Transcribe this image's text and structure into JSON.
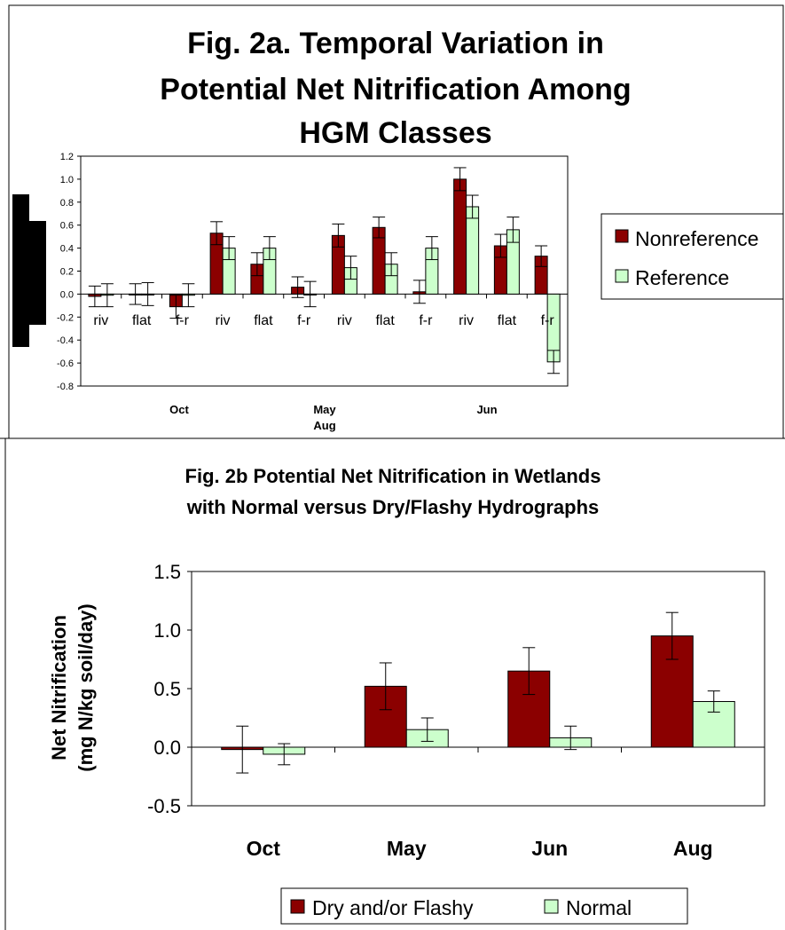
{
  "colors": {
    "dark": "#8B0000",
    "light": "#CCFFCC",
    "frame": "#000000"
  },
  "chart_data": [
    {
      "type": "bar",
      "title": "Fig. 2a. Temporal Variation in Potential Net Nitrification Among HGM Classes",
      "title_lines": [
        "Fig. 2a. Temporal Variation in",
        "Potential Net Nitrification Among",
        "HGM Classes"
      ],
      "categories": [
        "riv",
        "flat",
        "f-r",
        "riv",
        "flat",
        "f-r",
        "riv",
        "flat",
        "f-r",
        "riv",
        "flat",
        "f-r"
      ],
      "group_labels": [
        "Oct",
        "May",
        "Jun"
      ],
      "group_sublabel": "Aug",
      "series": [
        {
          "name": "Nonreference",
          "values": [
            -0.02,
            0.0,
            -0.11,
            0.53,
            0.26,
            0.06,
            0.51,
            0.58,
            0.02,
            1.0,
            0.42,
            0.33
          ],
          "errors": [
            0.09,
            0.09,
            0.1,
            0.1,
            0.1,
            0.09,
            0.1,
            0.09,
            0.1,
            0.1,
            0.1,
            0.09
          ]
        },
        {
          "name": "Reference",
          "values": [
            -0.01,
            0.0,
            -0.01,
            0.4,
            0.4,
            0.0,
            0.23,
            0.26,
            0.4,
            0.76,
            0.56,
            -0.59
          ],
          "errors": [
            0.1,
            0.1,
            0.1,
            0.1,
            0.1,
            0.11,
            0.1,
            0.1,
            0.1,
            0.1,
            0.11,
            0.1
          ]
        }
      ],
      "ylim": [
        -0.8,
        1.2
      ],
      "yticks": [
        "1.2",
        "1.0",
        "0.8",
        "0.6",
        "0.4",
        "0.2",
        "0.0",
        "-0.2",
        "-0.4",
        "-0.6",
        "-0.8"
      ],
      "xlabel": "",
      "ylabel": "",
      "legend": "right",
      "grid": false
    },
    {
      "type": "bar",
      "title": "Fig. 2b Potential Net Nitrification in Wetlands with Normal versus Dry/Flashy Hydrographs",
      "title_lines": [
        "Fig. 2b Potential Net Nitrification in Wetlands",
        "with Normal versus Dry/Flashy Hydrographs"
      ],
      "categories": [
        "Oct",
        "May",
        "Jun",
        "Aug"
      ],
      "series": [
        {
          "name": "Dry and/or Flashy",
          "values": [
            -0.02,
            0.52,
            0.65,
            0.95
          ],
          "errors": [
            0.2,
            0.2,
            0.2,
            0.2
          ]
        },
        {
          "name": "Normal",
          "values": [
            -0.06,
            0.15,
            0.08,
            0.39
          ],
          "errors": [
            0.09,
            0.1,
            0.1,
            0.09
          ]
        }
      ],
      "ylim": [
        -0.5,
        1.5
      ],
      "yticks": [
        "1.5",
        "1.0",
        "0.5",
        "0.0",
        "-0.5"
      ],
      "xlabel": "",
      "ylabel": "Net Nitrification",
      "ylabel2": "(mg N/kg soil/day)",
      "legend": "bottom",
      "grid": false
    }
  ]
}
